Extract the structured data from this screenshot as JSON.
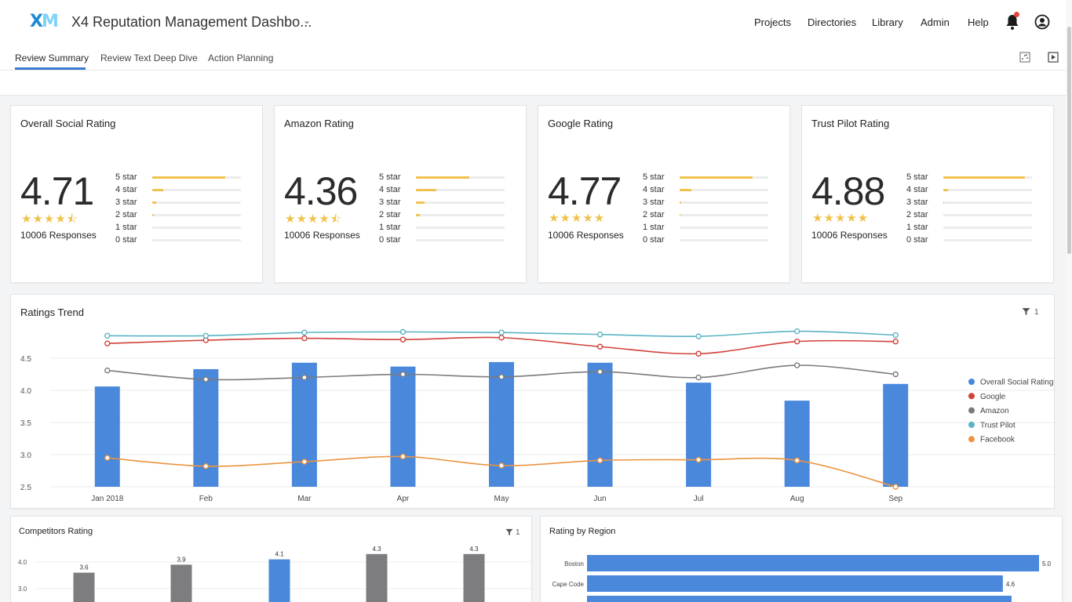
{
  "header": {
    "title": "X4 Reputation Management Dashbo...",
    "logo_text": "XM",
    "nav": [
      "Projects",
      "Directories",
      "Library",
      "Admin",
      "Help"
    ]
  },
  "tabs": [
    "Review Summary",
    "Review Text Deep Dive",
    "Action Planning"
  ],
  "rating_cards": [
    {
      "title": "Overall Social Rating",
      "score": "4.71",
      "stars": "★★★★⯪",
      "responses": "10006 Responses",
      "distribution": [
        {
          "label": "5 star",
          "value": 0.82
        },
        {
          "label": "4 star",
          "value": 0.12
        },
        {
          "label": "3 star",
          "value": 0.04
        },
        {
          "label": "2 star",
          "value": 0.02
        },
        {
          "label": "1 star",
          "value": 0.0
        },
        {
          "label": "0 star",
          "value": 0.0
        }
      ]
    },
    {
      "title": "Amazon Rating",
      "score": "4.36",
      "stars": "★★★★⯪",
      "responses": "10006 Responses",
      "distribution": [
        {
          "label": "5 star",
          "value": 0.6
        },
        {
          "label": "4 star",
          "value": 0.23
        },
        {
          "label": "3 star",
          "value": 0.1
        },
        {
          "label": "2 star",
          "value": 0.04
        },
        {
          "label": "1 star",
          "value": 0.0
        },
        {
          "label": "0 star",
          "value": 0.0
        }
      ]
    },
    {
      "title": "Google Rating",
      "score": "4.77",
      "stars": "★★★★★",
      "responses": "10006 Responses",
      "distribution": [
        {
          "label": "5 star",
          "value": 0.82
        },
        {
          "label": "4 star",
          "value": 0.13
        },
        {
          "label": "3 star",
          "value": 0.02
        },
        {
          "label": "2 star",
          "value": 0.01
        },
        {
          "label": "1 star",
          "value": 0.0
        },
        {
          "label": "0 star",
          "value": 0.0
        }
      ]
    },
    {
      "title": "Trust Pilot Rating",
      "score": "4.88",
      "stars": "★★★★★",
      "responses": "10006 Responses",
      "distribution": [
        {
          "label": "5 star",
          "value": 0.92
        },
        {
          "label": "4 star",
          "value": 0.05
        },
        {
          "label": "3 star",
          "value": 0.01
        },
        {
          "label": "2 star",
          "value": 0.0
        },
        {
          "label": "1 star",
          "value": 0.0
        },
        {
          "label": "0 star",
          "value": 0.0
        }
      ]
    }
  ],
  "trend_card": {
    "title": "Ratings Trend",
    "filter_count": "1"
  },
  "competitors_card": {
    "title": "Competitors Rating",
    "filter_count": "1"
  },
  "region_card": {
    "title": "Rating by Region"
  },
  "colors": {
    "bar_blue": "#4a88dc",
    "google": "#d2413a",
    "amazon": "#7b7b7b",
    "trust_pilot": "#5bb3c5",
    "facebook": "#ea9440",
    "star": "#f0c24c",
    "competitor_gray": "#7d7d80"
  },
  "chart_data": [
    {
      "type": "bar",
      "title": "Ratings Trend",
      "categories": [
        "Jan 2018",
        "Feb",
        "Mar",
        "Apr",
        "May",
        "Jun",
        "Jul",
        "Aug",
        "Sep"
      ],
      "ylim": [
        2.5,
        5.0
      ],
      "yticks": [
        "4.5",
        "4.0",
        "3.5",
        "3.0",
        "2.5"
      ],
      "legend_position": "right",
      "series": [
        {
          "name": "Overall Social Rating",
          "kind": "bar",
          "values": [
            4.06,
            4.33,
            4.43,
            4.37,
            4.44,
            4.43,
            4.12,
            3.84,
            4.1
          ]
        },
        {
          "name": "Google",
          "kind": "line",
          "values": [
            4.73,
            4.78,
            4.81,
            4.79,
            4.82,
            4.68,
            4.57,
            4.76,
            4.76
          ]
        },
        {
          "name": "Amazon",
          "kind": "line",
          "values": [
            4.31,
            4.17,
            4.2,
            4.25,
            4.21,
            4.29,
            4.2,
            4.39,
            4.25
          ]
        },
        {
          "name": "Trust Pilot",
          "kind": "line",
          "values": [
            4.85,
            4.85,
            4.9,
            4.91,
            4.9,
            4.87,
            4.84,
            4.92,
            4.86
          ]
        },
        {
          "name": "Facebook",
          "kind": "line",
          "values": [
            2.95,
            2.82,
            2.89,
            2.97,
            2.83,
            2.91,
            2.92,
            2.91,
            2.5
          ]
        }
      ]
    },
    {
      "type": "bar",
      "title": "Competitors Rating",
      "yticks": [
        "4.0",
        "3.0"
      ],
      "ylim": [
        2.5,
        4.5
      ],
      "values": [
        3.6,
        3.9,
        4.1,
        4.3,
        4.3
      ],
      "labels": [
        "3.6",
        "3.9",
        "4.1",
        "4.3",
        "4.3"
      ],
      "highlight_index": 2
    },
    {
      "type": "bar",
      "title": "Rating by Region",
      "orientation": "horizontal",
      "categories": [
        "Boston",
        "Cape Code"
      ],
      "values": [
        5.0,
        4.6
      ],
      "labels": [
        "5.0",
        "4.6"
      ],
      "xlim": [
        0,
        5.0
      ]
    }
  ]
}
